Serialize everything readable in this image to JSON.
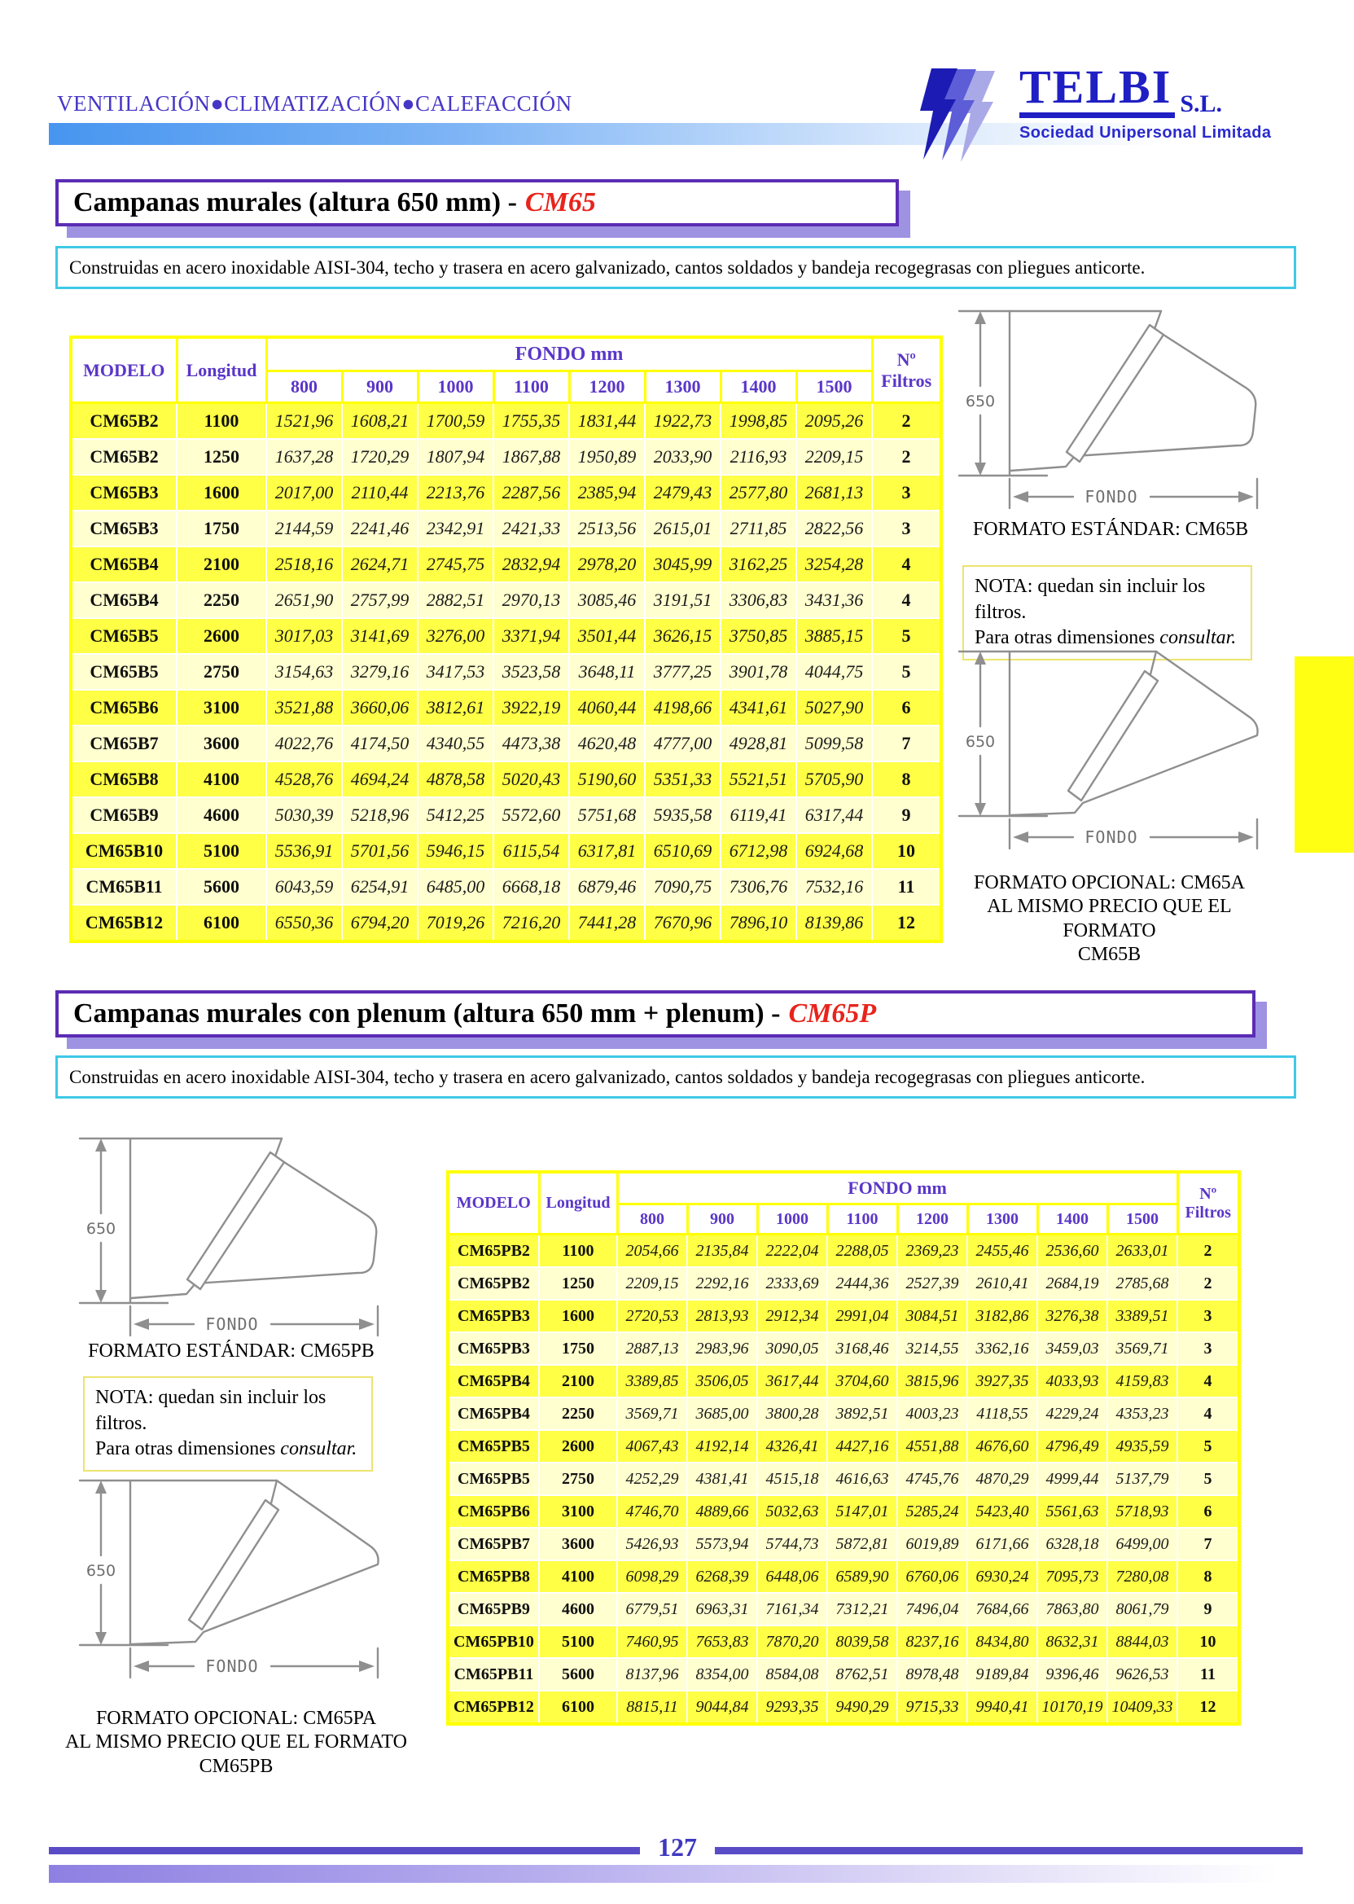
{
  "header": {
    "tagline": "VENTILACIÓN●CLIMATIZACIÓN●CALEFACCIÓN",
    "logo": {
      "name": "TELBI",
      "suffix": "S.L.",
      "subtitle": "Sociedad Unipersonal Limitada"
    }
  },
  "section1": {
    "title_prefix": "Campanas murales (altura 650 mm) -",
    "title_code": "CM65",
    "description": "Construidas en acero inoxidable AISI-304, techo y trasera en acero galvanizado, cantos soldados y bandeja recogegrasas con pliegues anticorte.",
    "table": {
      "headers": {
        "modelo": "MODELO",
        "longitud": "Longitud",
        "fondo_group": "FONDO mm",
        "filtros": "Nº Filtros"
      },
      "fondo_columns": [
        "800",
        "900",
        "1000",
        "1100",
        "1200",
        "1300",
        "1400",
        "1500"
      ],
      "rows": [
        {
          "modelo": "CM65B2",
          "longitud": "1100",
          "precios": [
            "1521,96",
            "1608,21",
            "1700,59",
            "1755,35",
            "1831,44",
            "1922,73",
            "1998,85",
            "2095,26"
          ],
          "filtros": "2"
        },
        {
          "modelo": "CM65B2",
          "longitud": "1250",
          "precios": [
            "1637,28",
            "1720,29",
            "1807,94",
            "1867,88",
            "1950,89",
            "2033,90",
            "2116,93",
            "2209,15"
          ],
          "filtros": "2"
        },
        {
          "modelo": "CM65B3",
          "longitud": "1600",
          "precios": [
            "2017,00",
            "2110,44",
            "2213,76",
            "2287,56",
            "2385,94",
            "2479,43",
            "2577,80",
            "2681,13"
          ],
          "filtros": "3"
        },
        {
          "modelo": "CM65B3",
          "longitud": "1750",
          "precios": [
            "2144,59",
            "2241,46",
            "2342,91",
            "2421,33",
            "2513,56",
            "2615,01",
            "2711,85",
            "2822,56"
          ],
          "filtros": "3"
        },
        {
          "modelo": "CM65B4",
          "longitud": "2100",
          "precios": [
            "2518,16",
            "2624,71",
            "2745,75",
            "2832,94",
            "2978,20",
            "3045,99",
            "3162,25",
            "3254,28"
          ],
          "filtros": "4"
        },
        {
          "modelo": "CM65B4",
          "longitud": "2250",
          "precios": [
            "2651,90",
            "2757,99",
            "2882,51",
            "2970,13",
            "3085,46",
            "3191,51",
            "3306,83",
            "3431,36"
          ],
          "filtros": "4"
        },
        {
          "modelo": "CM65B5",
          "longitud": "2600",
          "precios": [
            "3017,03",
            "3141,69",
            "3276,00",
            "3371,94",
            "3501,44",
            "3626,15",
            "3750,85",
            "3885,15"
          ],
          "filtros": "5"
        },
        {
          "modelo": "CM65B5",
          "longitud": "2750",
          "precios": [
            "3154,63",
            "3279,16",
            "3417,53",
            "3523,58",
            "3648,11",
            "3777,25",
            "3901,78",
            "4044,75"
          ],
          "filtros": "5"
        },
        {
          "modelo": "CM65B6",
          "longitud": "3100",
          "precios": [
            "3521,88",
            "3660,06",
            "3812,61",
            "3922,19",
            "4060,44",
            "4198,66",
            "4341,61",
            "5027,90"
          ],
          "filtros": "6"
        },
        {
          "modelo": "CM65B7",
          "longitud": "3600",
          "precios": [
            "4022,76",
            "4174,50",
            "4340,55",
            "4473,38",
            "4620,48",
            "4777,00",
            "4928,81",
            "5099,58"
          ],
          "filtros": "7"
        },
        {
          "modelo": "CM65B8",
          "longitud": "4100",
          "precios": [
            "4528,76",
            "4694,24",
            "4878,58",
            "5020,43",
            "5190,60",
            "5351,33",
            "5521,51",
            "5705,90"
          ],
          "filtros": "8"
        },
        {
          "modelo": "CM65B9",
          "longitud": "4600",
          "precios": [
            "5030,39",
            "5218,96",
            "5412,25",
            "5572,60",
            "5751,68",
            "5935,58",
            "6119,41",
            "6317,44"
          ],
          "filtros": "9"
        },
        {
          "modelo": "CM65B10",
          "longitud": "5100",
          "precios": [
            "5536,91",
            "5701,56",
            "5946,15",
            "6115,54",
            "6317,81",
            "6510,69",
            "6712,98",
            "6924,68"
          ],
          "filtros": "10"
        },
        {
          "modelo": "CM65B11",
          "longitud": "5600",
          "precios": [
            "6043,59",
            "6254,91",
            "6485,00",
            "6668,18",
            "6879,46",
            "7090,75",
            "7306,76",
            "7532,16"
          ],
          "filtros": "11"
        },
        {
          "modelo": "CM65B12",
          "longitud": "6100",
          "precios": [
            "6550,36",
            "6794,20",
            "7019,26",
            "7216,20",
            "7441,28",
            "7670,96",
            "7896,10",
            "8139,86"
          ],
          "filtros": "12"
        }
      ]
    },
    "standard": {
      "dim_height": "650",
      "dim_width": "FONDO",
      "caption": "FORMATO ESTÁNDAR: CM65B"
    },
    "nota": {
      "line1": "NOTA: quedan sin incluir los filtros.",
      "line2_prefix": "Para otras dimensiones ",
      "line2_italic": "consultar."
    },
    "optional": {
      "dim_height": "650",
      "dim_width": "FONDO",
      "caption_line1": "FORMATO OPCIONAL: CM65A",
      "caption_line2": "AL MISMO PRECIO QUE EL FORMATO",
      "caption_line3": "CM65B"
    }
  },
  "section2": {
    "title_prefix": "Campanas murales con plenum (altura 650 mm + plenum) -",
    "title_code": "CM65P",
    "description": "Construidas en acero inoxidable AISI-304, techo y trasera en acero galvanizado, cantos soldados y bandeja recogegrasas con pliegues anticorte.",
    "table": {
      "headers": {
        "modelo": "MODELO",
        "longitud": "Longitud",
        "fondo_group": "FONDO mm",
        "filtros": "Nº Filtros"
      },
      "fondo_columns": [
        "800",
        "900",
        "1000",
        "1100",
        "1200",
        "1300",
        "1400",
        "1500"
      ],
      "rows": [
        {
          "modelo": "CM65PB2",
          "longitud": "1100",
          "precios": [
            "2054,66",
            "2135,84",
            "2222,04",
            "2288,05",
            "2369,23",
            "2455,46",
            "2536,60",
            "2633,01"
          ],
          "filtros": "2"
        },
        {
          "modelo": "CM65PB2",
          "longitud": "1250",
          "precios": [
            "2209,15",
            "2292,16",
            "2333,69",
            "2444,36",
            "2527,39",
            "2610,41",
            "2684,19",
            "2785,68"
          ],
          "filtros": "2"
        },
        {
          "modelo": "CM65PB3",
          "longitud": "1600",
          "precios": [
            "2720,53",
            "2813,93",
            "2912,34",
            "2991,04",
            "3084,51",
            "3182,86",
            "3276,38",
            "3389,51"
          ],
          "filtros": "3"
        },
        {
          "modelo": "CM65PB3",
          "longitud": "1750",
          "precios": [
            "2887,13",
            "2983,96",
            "3090,05",
            "3168,46",
            "3214,55",
            "3362,16",
            "3459,03",
            "3569,71"
          ],
          "filtros": "3"
        },
        {
          "modelo": "CM65PB4",
          "longitud": "2100",
          "precios": [
            "3389,85",
            "3506,05",
            "3617,44",
            "3704,60",
            "3815,96",
            "3927,35",
            "4033,93",
            "4159,83"
          ],
          "filtros": "4"
        },
        {
          "modelo": "CM65PB4",
          "longitud": "2250",
          "precios": [
            "3569,71",
            "3685,00",
            "3800,28",
            "3892,51",
            "4003,23",
            "4118,55",
            "4229,24",
            "4353,23"
          ],
          "filtros": "4"
        },
        {
          "modelo": "CM65PB5",
          "longitud": "2600",
          "precios": [
            "4067,43",
            "4192,14",
            "4326,41",
            "4427,16",
            "4551,88",
            "4676,60",
            "4796,49",
            "4935,59"
          ],
          "filtros": "5"
        },
        {
          "modelo": "CM65PB5",
          "longitud": "2750",
          "precios": [
            "4252,29",
            "4381,41",
            "4515,18",
            "4616,63",
            "4745,76",
            "4870,29",
            "4999,44",
            "5137,79"
          ],
          "filtros": "5"
        },
        {
          "modelo": "CM65PB6",
          "longitud": "3100",
          "precios": [
            "4746,70",
            "4889,66",
            "5032,63",
            "5147,01",
            "5285,24",
            "5423,40",
            "5561,63",
            "5718,93"
          ],
          "filtros": "6"
        },
        {
          "modelo": "CM65PB7",
          "longitud": "3600",
          "precios": [
            "5426,93",
            "5573,94",
            "5744,73",
            "5872,81",
            "6019,89",
            "6171,66",
            "6328,18",
            "6499,00"
          ],
          "filtros": "7"
        },
        {
          "modelo": "CM65PB8",
          "longitud": "4100",
          "precios": [
            "6098,29",
            "6268,39",
            "6448,06",
            "6589,90",
            "6760,06",
            "6930,24",
            "7095,73",
            "7280,08"
          ],
          "filtros": "8"
        },
        {
          "modelo": "CM65PB9",
          "longitud": "4600",
          "precios": [
            "6779,51",
            "6963,31",
            "7161,34",
            "7312,21",
            "7496,04",
            "7684,66",
            "7863,80",
            "8061,79"
          ],
          "filtros": "9"
        },
        {
          "modelo": "CM65PB10",
          "longitud": "5100",
          "precios": [
            "7460,95",
            "7653,83",
            "7870,20",
            "8039,58",
            "8237,16",
            "8434,80",
            "8632,31",
            "8844,03"
          ],
          "filtros": "10"
        },
        {
          "modelo": "CM65PB11",
          "longitud": "5600",
          "precios": [
            "8137,96",
            "8354,00",
            "8584,08",
            "8762,51",
            "8978,48",
            "9189,84",
            "9396,46",
            "9626,53"
          ],
          "filtros": "11"
        },
        {
          "modelo": "CM65PB12",
          "longitud": "6100",
          "precios": [
            "8815,11",
            "9044,84",
            "9293,35",
            "9490,29",
            "9715,33",
            "9940,41",
            "10170,19",
            "10409,33"
          ],
          "filtros": "12"
        }
      ]
    },
    "standard": {
      "dim_height": "650",
      "dim_width": "FONDO",
      "caption": "FORMATO ESTÁNDAR: CM65PB"
    },
    "nota": {
      "line1": "NOTA: quedan sin incluir los filtros.",
      "line2_prefix": "Para otras dimensiones ",
      "line2_italic": "consultar."
    },
    "optional": {
      "dim_height": "650",
      "dim_width": "FONDO",
      "caption_line1": "FORMATO OPCIONAL: CM65PA",
      "caption_line2": "AL MISMO PRECIO QUE EL FORMATO CM65PB"
    }
  },
  "footer": {
    "page_number": "127"
  },
  "colors": {
    "accent_purple": "#5b2db4",
    "accent_red": "#e8241c",
    "table_border_yellow": "#ffff00",
    "row_bright_yellow": "#ffff45",
    "row_pale_yellow": "#ffffcf",
    "table_header_text": "#5a36c8",
    "cyan_border": "#3fc9e6",
    "logo_blue": "#1f1fc4",
    "gradient_blue": "#4795f0",
    "side_tab_yellow": "#ffff14"
  }
}
